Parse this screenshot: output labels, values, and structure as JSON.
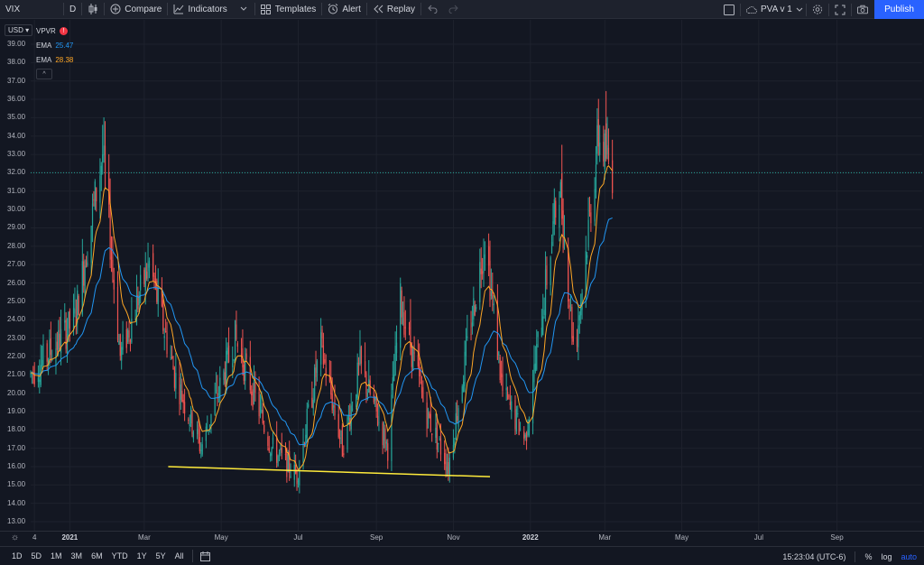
{
  "toolbar": {
    "symbol": "VIX",
    "interval": "D",
    "compare": "Compare",
    "indicators": "Indicators",
    "templates": "Templates",
    "alert": "Alert",
    "replay": "Replay",
    "layout_name": "PVA v 1",
    "publish": "Publish"
  },
  "legend": {
    "currency": "USD",
    "vpvr": "VPVR",
    "warn": "!",
    "ema1_label": "EMA",
    "ema1_value": "25.47",
    "ema1_color": "#2196f3",
    "ema2_label": "EMA",
    "ema2_value": "28.38",
    "ema2_color": "#ffa726",
    "collapse": "^"
  },
  "bottom": {
    "ranges": [
      "1D",
      "5D",
      "1M",
      "3M",
      "6M",
      "YTD",
      "1Y",
      "5Y",
      "All"
    ],
    "time": "15:23:04 (UTC-6)",
    "percent": "%",
    "log": "log",
    "auto": "auto"
  },
  "colors": {
    "up": "#26a69a",
    "down": "#ef5350",
    "background": "#131722",
    "grid": "#1e222d",
    "trendline": "#ffeb3b",
    "price_line": "#26a69a"
  },
  "chart_data": {
    "type": "candlestick",
    "title": "",
    "symbol": "VIX",
    "interval": "D",
    "ylim": [
      13.0,
      39.5
    ],
    "y_ticks": [
      "39.00",
      "38.00",
      "37.00",
      "36.00",
      "35.00",
      "34.00",
      "33.00",
      "32.00",
      "31.00",
      "30.00",
      "29.00",
      "28.00",
      "27.00",
      "26.00",
      "25.00",
      "24.00",
      "23.00",
      "22.00",
      "21.00",
      "20.00",
      "19.00",
      "18.00",
      "17.00",
      "16.00",
      "15.00",
      "14.00",
      "13.00"
    ],
    "x_ticks": [
      "4",
      "2021",
      "Mar",
      "May",
      "Jul",
      "Sep",
      "Nov",
      "2022",
      "Mar",
      "May",
      "Jul",
      "Sep"
    ],
    "bold_x_ticks": [
      "2021",
      "2022"
    ],
    "horizontal_price_line": 32.0,
    "trendline": {
      "from": {
        "date": "2021-03-20",
        "value": 16.0
      },
      "to": {
        "date": "2021-11-30",
        "value": 15.45
      }
    },
    "approx_close_path": [
      {
        "date": "2020-12-01",
        "value": 21.0
      },
      {
        "date": "2020-12-20",
        "value": 22.5
      },
      {
        "date": "2021-01-05",
        "value": 24.0
      },
      {
        "date": "2021-01-27",
        "value": 33.0
      },
      {
        "date": "2021-02-10",
        "value": 22.0
      },
      {
        "date": "2021-03-05",
        "value": 27.0
      },
      {
        "date": "2021-03-25",
        "value": 21.0
      },
      {
        "date": "2021-04-15",
        "value": 17.0
      },
      {
        "date": "2021-05-12",
        "value": 23.0
      },
      {
        "date": "2021-06-10",
        "value": 17.0
      },
      {
        "date": "2021-06-30",
        "value": 15.5
      },
      {
        "date": "2021-07-19",
        "value": 22.5
      },
      {
        "date": "2021-08-05",
        "value": 17.0
      },
      {
        "date": "2021-08-19",
        "value": 21.5
      },
      {
        "date": "2021-09-10",
        "value": 17.0
      },
      {
        "date": "2021-09-20",
        "value": 25.0
      },
      {
        "date": "2021-10-10",
        "value": 19.0
      },
      {
        "date": "2021-10-28",
        "value": 16.0
      },
      {
        "date": "2021-11-26",
        "value": 28.5
      },
      {
        "date": "2021-12-10",
        "value": 20.0
      },
      {
        "date": "2021-12-28",
        "value": 17.5
      },
      {
        "date": "2022-01-24",
        "value": 31.5
      },
      {
        "date": "2022-02-05",
        "value": 22.0
      },
      {
        "date": "2022-02-24",
        "value": 34.0
      },
      {
        "date": "2022-03-07",
        "value": 32.0
      }
    ],
    "ema_fast_last": 28.38,
    "ema_slow_last": 25.47
  }
}
